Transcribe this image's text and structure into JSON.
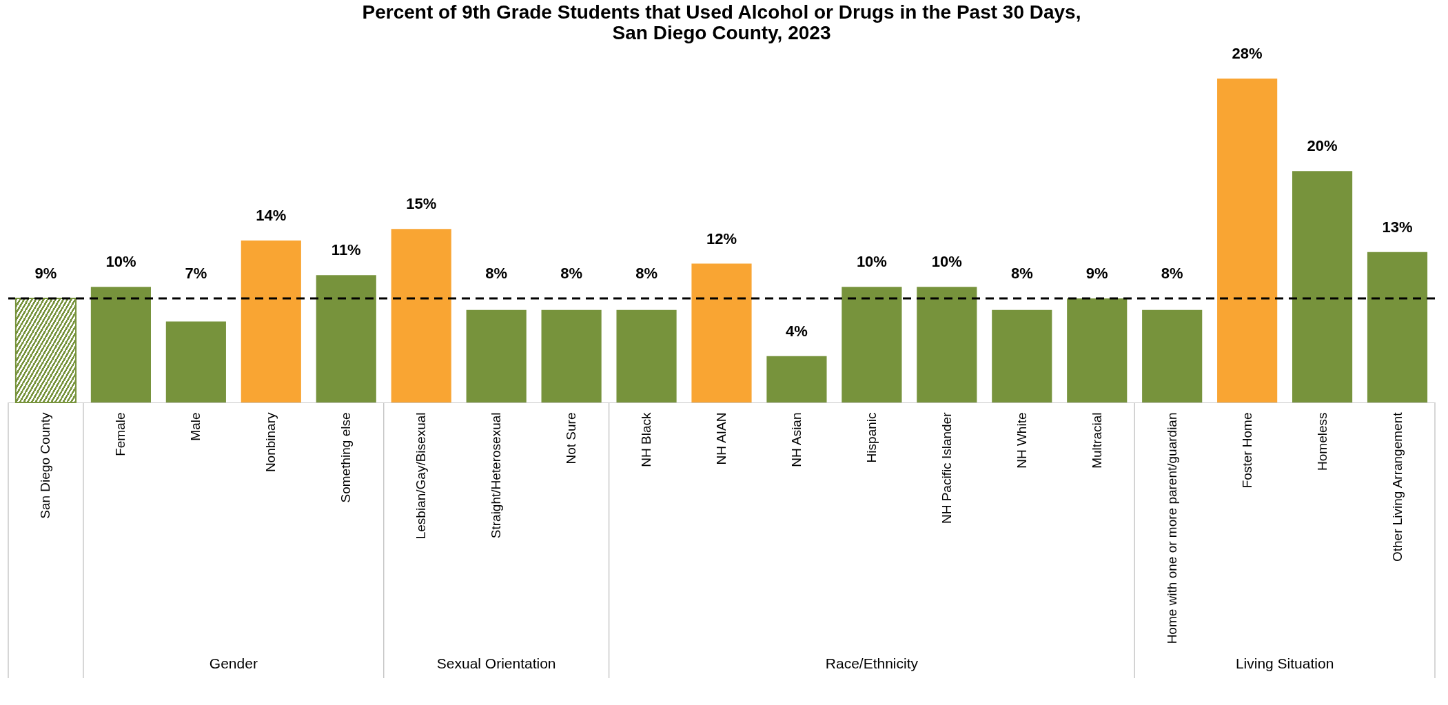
{
  "chart_data": {
    "type": "bar",
    "title": "Percent of 9th Grade Students that Used Alcohol or Drugs in the Past 30 Days,\nSan Diego County, 2023",
    "categories": [
      "San Diego County",
      "Female",
      "Male",
      "Nonbinary",
      "Something else",
      "Lesbian/Gay/Bisexual",
      "Straight/Heterosexual",
      "Not Sure",
      "NH Black",
      "NH AIAN",
      "NH Asian",
      "Hispanic",
      "NH Pacific Islander",
      "NH White",
      "Multracial",
      "Home with one or more parent/guardian",
      "Foster Home",
      "Homeless",
      "Other Living Arrangement"
    ],
    "values": [
      9,
      10,
      7,
      14,
      11,
      15,
      8,
      8,
      8,
      12,
      4,
      10,
      10,
      8,
      9,
      8,
      28,
      20,
      13
    ],
    "value_labels": [
      "9%",
      "10%",
      "7%",
      "14%",
      "11%",
      "15%",
      "8%",
      "8%",
      "8%",
      "12%",
      "4%",
      "10%",
      "10%",
      "8%",
      "9%",
      "8%",
      "28%",
      "20%",
      "13%"
    ],
    "colors": [
      "#77933c",
      "#77933c",
      "#77933c",
      "#f9a533",
      "#77933c",
      "#f9a533",
      "#77933c",
      "#77933c",
      "#77933c",
      "#f9a533",
      "#77933c",
      "#77933c",
      "#77933c",
      "#77933c",
      "#77933c",
      "#77933c",
      "#f9a533",
      "#77933c",
      "#77933c"
    ],
    "ref_lines": [
      {
        "axis": "y",
        "value": 9,
        "color": "#000000",
        "line_style": "dashed"
      }
    ],
    "annotations": [
      "Gender",
      "Sexual Orientation",
      "Race/Ethnicity",
      "Living Situation"
    ],
    "grid": false
  }
}
